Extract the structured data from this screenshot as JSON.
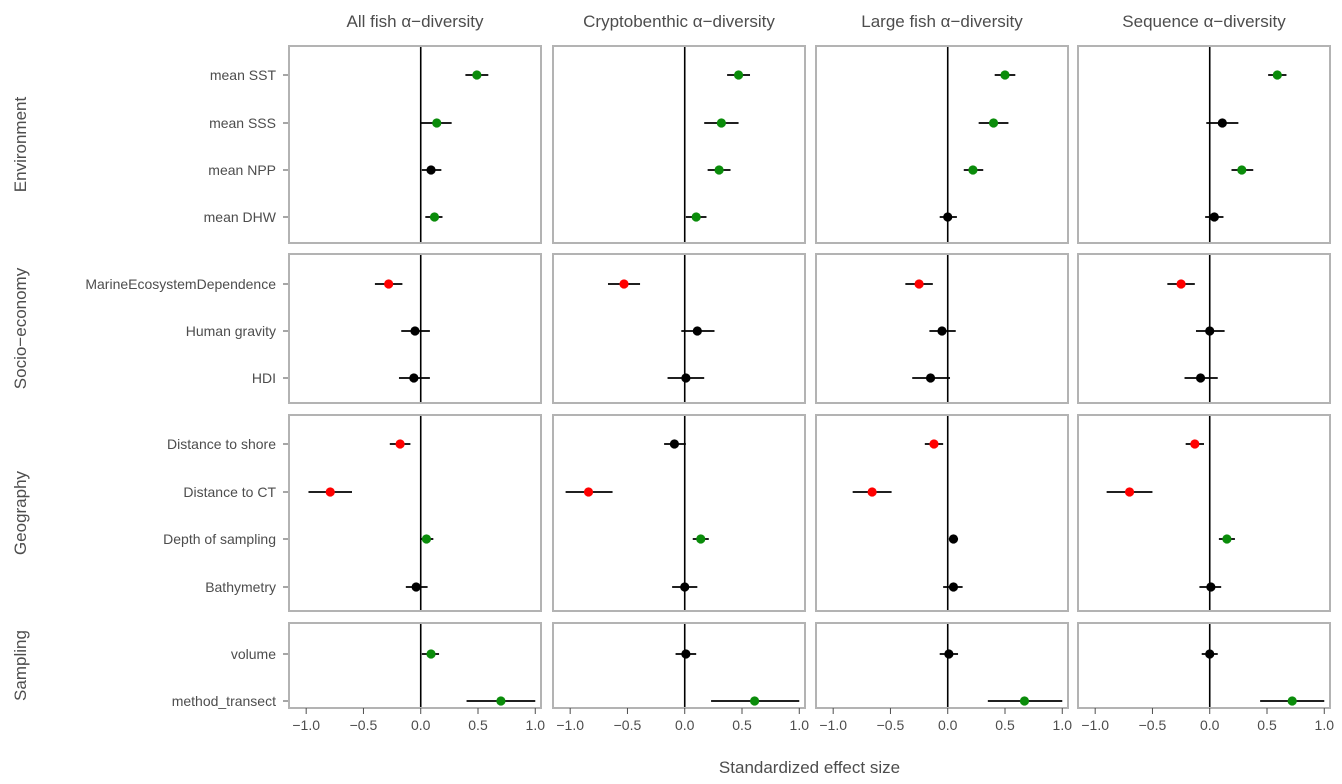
{
  "chart_data": {
    "type": "scatter",
    "subtype": "forest-plot",
    "xlabel": "Standardized effect size",
    "xlim": [
      -1.15,
      1.05
    ],
    "xticks": [
      -1.0,
      -0.5,
      0.0,
      0.5,
      1.0
    ],
    "xtick_labels": [
      "−1.0",
      "−0.5",
      "0.0",
      "0.5",
      "1.0"
    ],
    "reference_line_x": 0,
    "grid": false,
    "colors": {
      "positive": "#0a8c0a",
      "negative": "#ff0000",
      "nonsignificant": "#000000",
      "frame": "#b3b3b3",
      "text": "#4d4d4d"
    },
    "columns": [
      "All fish α−diversity",
      "Cryptobenthic α−diversity",
      "Large fish α−diversity",
      "Sequence α−diversity"
    ],
    "groups": [
      {
        "name": "Environment",
        "variables": [
          {
            "label": "mean SST",
            "effects": [
              {
                "est": 0.49,
                "lo": 0.39,
                "hi": 0.59,
                "sig": "positive"
              },
              {
                "est": 0.47,
                "lo": 0.37,
                "hi": 0.57,
                "sig": "positive"
              },
              {
                "est": 0.5,
                "lo": 0.41,
                "hi": 0.59,
                "sig": "positive"
              },
              {
                "est": 0.59,
                "lo": 0.51,
                "hi": 0.67,
                "sig": "positive"
              }
            ]
          },
          {
            "label": "mean SSS",
            "effects": [
              {
                "est": 0.14,
                "lo": 0.0,
                "hi": 0.27,
                "sig": "positive"
              },
              {
                "est": 0.32,
                "lo": 0.17,
                "hi": 0.47,
                "sig": "positive"
              },
              {
                "est": 0.4,
                "lo": 0.27,
                "hi": 0.53,
                "sig": "positive"
              },
              {
                "est": 0.11,
                "lo": -0.03,
                "hi": 0.25,
                "sig": "nonsignificant"
              }
            ]
          },
          {
            "label": "mean NPP",
            "effects": [
              {
                "est": 0.09,
                "lo": 0.01,
                "hi": 0.18,
                "sig": "nonsignificant"
              },
              {
                "est": 0.3,
                "lo": 0.2,
                "hi": 0.4,
                "sig": "positive"
              },
              {
                "est": 0.22,
                "lo": 0.14,
                "hi": 0.31,
                "sig": "positive"
              },
              {
                "est": 0.28,
                "lo": 0.19,
                "hi": 0.38,
                "sig": "positive"
              }
            ]
          },
          {
            "label": "mean DHW",
            "effects": [
              {
                "est": 0.12,
                "lo": 0.04,
                "hi": 0.19,
                "sig": "positive"
              },
              {
                "est": 0.1,
                "lo": 0.01,
                "hi": 0.19,
                "sig": "positive"
              },
              {
                "est": 0.0,
                "lo": -0.07,
                "hi": 0.08,
                "sig": "nonsignificant"
              },
              {
                "est": 0.04,
                "lo": -0.04,
                "hi": 0.12,
                "sig": "nonsignificant"
              }
            ]
          }
        ]
      },
      {
        "name": "Socio−economy",
        "variables": [
          {
            "label": "MarineEcosystemDependence",
            "effects": [
              {
                "est": -0.28,
                "lo": -0.4,
                "hi": -0.16,
                "sig": "negative"
              },
              {
                "est": -0.53,
                "lo": -0.67,
                "hi": -0.39,
                "sig": "negative"
              },
              {
                "est": -0.25,
                "lo": -0.37,
                "hi": -0.13,
                "sig": "negative"
              },
              {
                "est": -0.25,
                "lo": -0.37,
                "hi": -0.13,
                "sig": "negative"
              }
            ]
          },
          {
            "label": "Human gravity",
            "effects": [
              {
                "est": -0.05,
                "lo": -0.17,
                "hi": 0.08,
                "sig": "nonsignificant"
              },
              {
                "est": 0.11,
                "lo": -0.03,
                "hi": 0.26,
                "sig": "nonsignificant"
              },
              {
                "est": -0.05,
                "lo": -0.16,
                "hi": 0.07,
                "sig": "nonsignificant"
              },
              {
                "est": 0.0,
                "lo": -0.12,
                "hi": 0.13,
                "sig": "nonsignificant"
              }
            ]
          },
          {
            "label": "HDI",
            "effects": [
              {
                "est": -0.06,
                "lo": -0.19,
                "hi": 0.08,
                "sig": "nonsignificant"
              },
              {
                "est": 0.01,
                "lo": -0.15,
                "hi": 0.17,
                "sig": "nonsignificant"
              },
              {
                "est": -0.15,
                "lo": -0.31,
                "hi": 0.02,
                "sig": "nonsignificant"
              },
              {
                "est": -0.08,
                "lo": -0.22,
                "hi": 0.07,
                "sig": "nonsignificant"
              }
            ]
          }
        ]
      },
      {
        "name": "Geography",
        "variables": [
          {
            "label": "Distance to shore",
            "effects": [
              {
                "est": -0.18,
                "lo": -0.27,
                "hi": -0.09,
                "sig": "negative"
              },
              {
                "est": -0.09,
                "lo": -0.18,
                "hi": 0.01,
                "sig": "nonsignificant"
              },
              {
                "est": -0.12,
                "lo": -0.2,
                "hi": -0.04,
                "sig": "negative"
              },
              {
                "est": -0.13,
                "lo": -0.21,
                "hi": -0.05,
                "sig": "negative"
              }
            ]
          },
          {
            "label": "Distance to CT",
            "effects": [
              {
                "est": -0.79,
                "lo": -0.98,
                "hi": -0.6,
                "sig": "negative"
              },
              {
                "est": -0.84,
                "lo": -1.04,
                "hi": -0.63,
                "sig": "negative"
              },
              {
                "est": -0.66,
                "lo": -0.83,
                "hi": -0.49,
                "sig": "negative"
              },
              {
                "est": -0.7,
                "lo": -0.9,
                "hi": -0.5,
                "sig": "negative"
              }
            ]
          },
          {
            "label": "Depth of sampling",
            "effects": [
              {
                "est": 0.05,
                "lo": 0.0,
                "hi": 0.11,
                "sig": "positive"
              },
              {
                "est": 0.14,
                "lo": 0.07,
                "hi": 0.21,
                "sig": "positive"
              },
              {
                "est": 0.05,
                "lo": 0.01,
                "hi": 0.09,
                "sig": "nonsignificant"
              },
              {
                "est": 0.15,
                "lo": 0.08,
                "hi": 0.22,
                "sig": "positive"
              }
            ]
          },
          {
            "label": "Bathymetry",
            "effects": [
              {
                "est": -0.04,
                "lo": -0.13,
                "hi": 0.06,
                "sig": "nonsignificant"
              },
              {
                "est": 0.0,
                "lo": -0.11,
                "hi": 0.11,
                "sig": "nonsignificant"
              },
              {
                "est": 0.05,
                "lo": -0.04,
                "hi": 0.13,
                "sig": "nonsignificant"
              },
              {
                "est": 0.01,
                "lo": -0.09,
                "hi": 0.1,
                "sig": "nonsignificant"
              }
            ]
          }
        ]
      },
      {
        "name": "Sampling",
        "variables": [
          {
            "label": "volume",
            "effects": [
              {
                "est": 0.09,
                "lo": 0.01,
                "hi": 0.16,
                "sig": "positive"
              },
              {
                "est": 0.01,
                "lo": -0.08,
                "hi": 0.1,
                "sig": "nonsignificant"
              },
              {
                "est": 0.01,
                "lo": -0.07,
                "hi": 0.09,
                "sig": "nonsignificant"
              },
              {
                "est": 0.0,
                "lo": -0.07,
                "hi": 0.07,
                "sig": "nonsignificant"
              }
            ]
          },
          {
            "label": "method_transect",
            "effects": [
              {
                "est": 0.7,
                "lo": 0.4,
                "hi": 1.0,
                "sig": "positive"
              },
              {
                "est": 0.61,
                "lo": 0.23,
                "hi": 1.0,
                "sig": "positive"
              },
              {
                "est": 0.67,
                "lo": 0.35,
                "hi": 1.0,
                "sig": "positive"
              },
              {
                "est": 0.72,
                "lo": 0.44,
                "hi": 1.0,
                "sig": "positive"
              }
            ]
          }
        ]
      }
    ]
  }
}
